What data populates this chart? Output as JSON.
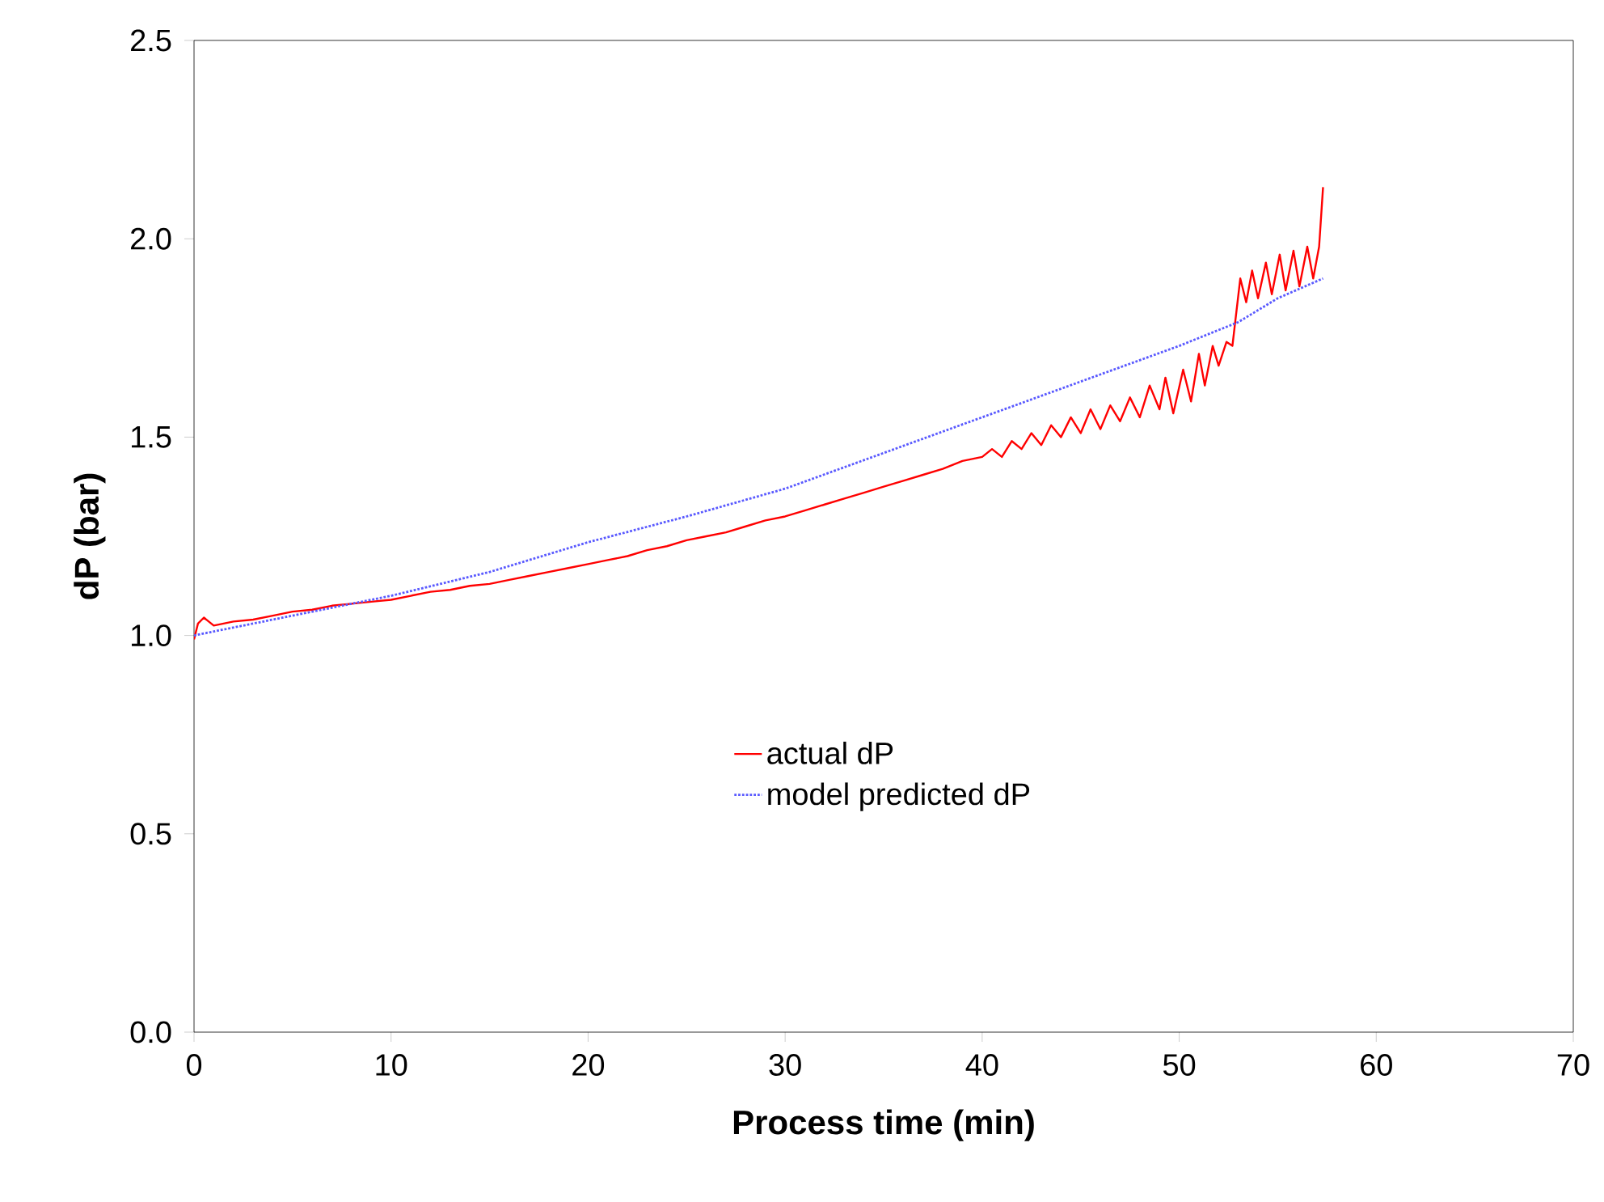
{
  "chart_data": {
    "type": "line",
    "xlabel": "Process time (min)",
    "ylabel": "dP (bar)",
    "xlim": [
      0,
      70
    ],
    "xticks": [
      0,
      10,
      20,
      30,
      40,
      50,
      60,
      70
    ],
    "ylim": [
      0,
      2.5
    ],
    "yticks": [
      {
        "value": 0,
        "label": "0.0"
      },
      {
        "value": 0.5,
        "label": "0.5"
      },
      {
        "value": 1,
        "label": "1.0"
      },
      {
        "value": 1.5,
        "label": "1.5"
      },
      {
        "value": 2,
        "label": "2.0"
      },
      {
        "value": 2.5,
        "label": "2.5"
      }
    ],
    "grid": false,
    "legend": "bottom",
    "series": [
      {
        "name": "actual dP",
        "color": "#ff0000",
        "line_style": "solid",
        "x": [
          0,
          0.2,
          0.5,
          1,
          2,
          3,
          4,
          5,
          6,
          7,
          8,
          9,
          10,
          11,
          12,
          13,
          14,
          15,
          16,
          17,
          18,
          19,
          20,
          21,
          22,
          23,
          24,
          25,
          26,
          27,
          28,
          29,
          30,
          31,
          32,
          33,
          34,
          35,
          36,
          37,
          38,
          39,
          40,
          40.5,
          41,
          41.5,
          42,
          42.5,
          43,
          43.5,
          44,
          44.5,
          45,
          45.5,
          46,
          46.5,
          47,
          47.5,
          48,
          48.5,
          49,
          49.3,
          49.7,
          50.2,
          50.6,
          51,
          51.3,
          51.7,
          52,
          52.4,
          52.7,
          53.1,
          53.4,
          53.7,
          54,
          54.4,
          54.7,
          55.1,
          55.4,
          55.8,
          56.1,
          56.5,
          56.8,
          57.1,
          57.3
        ],
        "values": [
          0.99,
          1.03,
          1.045,
          1.025,
          1.035,
          1.04,
          1.05,
          1.06,
          1.065,
          1.075,
          1.08,
          1.085,
          1.09,
          1.1,
          1.11,
          1.115,
          1.125,
          1.13,
          1.14,
          1.15,
          1.16,
          1.17,
          1.18,
          1.19,
          1.2,
          1.215,
          1.225,
          1.24,
          1.25,
          1.26,
          1.275,
          1.29,
          1.3,
          1.315,
          1.33,
          1.345,
          1.36,
          1.375,
          1.39,
          1.405,
          1.42,
          1.44,
          1.45,
          1.47,
          1.45,
          1.49,
          1.47,
          1.51,
          1.48,
          1.53,
          1.5,
          1.55,
          1.51,
          1.57,
          1.52,
          1.58,
          1.54,
          1.6,
          1.55,
          1.63,
          1.57,
          1.65,
          1.56,
          1.67,
          1.59,
          1.71,
          1.63,
          1.73,
          1.68,
          1.74,
          1.73,
          1.9,
          1.84,
          1.92,
          1.85,
          1.94,
          1.86,
          1.96,
          1.87,
          1.97,
          1.88,
          1.98,
          1.9,
          1.98,
          2.13
        ]
      },
      {
        "name": "model predicted dP",
        "color": "#5a5aff",
        "line_style": "dotted",
        "x": [
          0,
          5,
          10,
          15,
          20,
          25,
          30,
          35,
          40,
          45,
          50,
          53,
          55,
          57.3
        ],
        "values": [
          1.0,
          1.05,
          1.1,
          1.16,
          1.235,
          1.3,
          1.37,
          1.46,
          1.55,
          1.64,
          1.73,
          1.79,
          1.85,
          1.9
        ]
      }
    ]
  }
}
